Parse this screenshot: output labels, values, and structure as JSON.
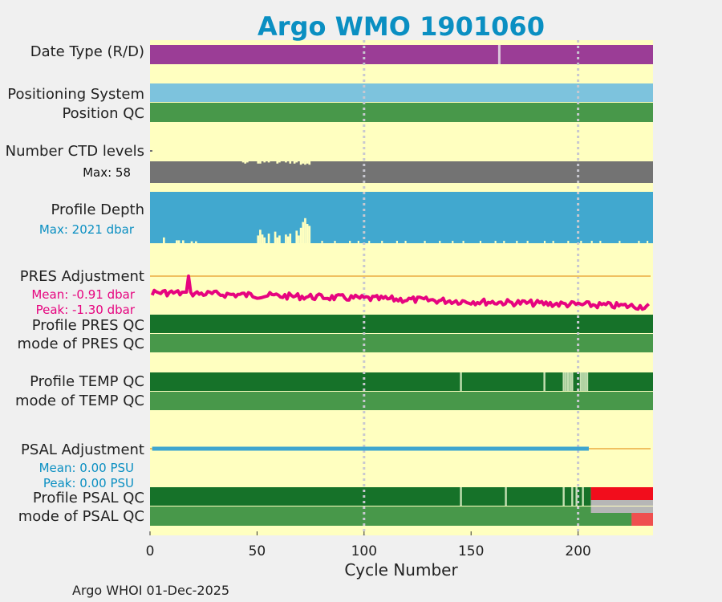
{
  "colors": {
    "background": "#f0f0f0",
    "plot_bg": "#ffffc0",
    "title": "#0a8fc2",
    "datetype": "#9b3d96",
    "positioning": "#7dc3dd",
    "qc_good": "#48984a",
    "qc_dark": "#167229",
    "qc_light": "#c5e0b3",
    "ctd": "#737373",
    "depth": "#41a8cf",
    "pres": "#e6047f",
    "psal_line": "#3ea6cf",
    "adj_ref": "#f0c060",
    "red": "#f20d1c",
    "grey": "#b6b6b6",
    "salmon": "#ef4f4f",
    "grid": "#c8c8d0",
    "pres_label": "#e6047f",
    "psal_label": "#0a8fc2",
    "depth_label": "#0a8fc2"
  },
  "title": "Argo WMO 1901060",
  "footer": "Argo WHOI 01-Dec-2025",
  "chart_data": {
    "type": "table",
    "title": "Argo WMO 1901060",
    "xlabel": "Cycle Number",
    "xlim": [
      0,
      235
    ],
    "xticks": [
      "0",
      "50",
      "100",
      "150",
      "200"
    ],
    "xtick_values": [
      0,
      50,
      100,
      150,
      200
    ],
    "grid_cycles": [
      100,
      200
    ],
    "rows": {
      "date_type": {
        "label": "Date Type (R/D)",
        "value": "D",
        "exceptions": [
          163
        ]
      },
      "positioning": {
        "label": "Positioning System",
        "value": "GPS"
      },
      "position_qc": {
        "label": "Position QC",
        "value": 1
      },
      "ctd_levels": {
        "label": "Number CTD levels",
        "max_label": "Max: 58",
        "max": 58
      },
      "profile_depth": {
        "label": "Profile Depth",
        "max_label": "Max: 2021 dbar",
        "max": 2021
      },
      "pres_adjustment": {
        "label": "PRES Adjustment",
        "mean_label": "Mean: -0.91 dbar",
        "peak_label": "Peak: -1.30 dbar",
        "mean": -0.91,
        "peak": -1.3
      },
      "profile_pres_qc": {
        "label": "Profile PRES QC",
        "value": "A"
      },
      "mode_pres_qc": {
        "label": "mode of PRES QC",
        "value": 1
      },
      "profile_temp_qc": {
        "label": "Profile TEMP QC",
        "value": "A",
        "light_cycles": [
          145,
          184,
          193,
          194,
          195,
          196,
          197,
          201,
          202,
          203,
          204
        ]
      },
      "mode_temp_qc": {
        "label": "mode of TEMP QC",
        "value": 1
      },
      "psal_adjustment": {
        "label": "PSAL Adjustment",
        "mean_label": "Mean: 0.00 PSU",
        "peak_label": "Peak: 0.00 PSU",
        "mean": 0.0,
        "peak": 0.0,
        "last_cycle": 205
      },
      "profile_psal_qc": {
        "label": "Profile PSAL QC",
        "value": "A",
        "light_cycles": [
          145,
          166,
          193,
          197,
          199,
          202
        ],
        "red_from_cycle": 206
      },
      "mode_psal_qc": {
        "label": "mode of PSAL QC",
        "value": 1,
        "grey_from_cycle": 206,
        "salmon_from_cycle": 225
      }
    }
  }
}
